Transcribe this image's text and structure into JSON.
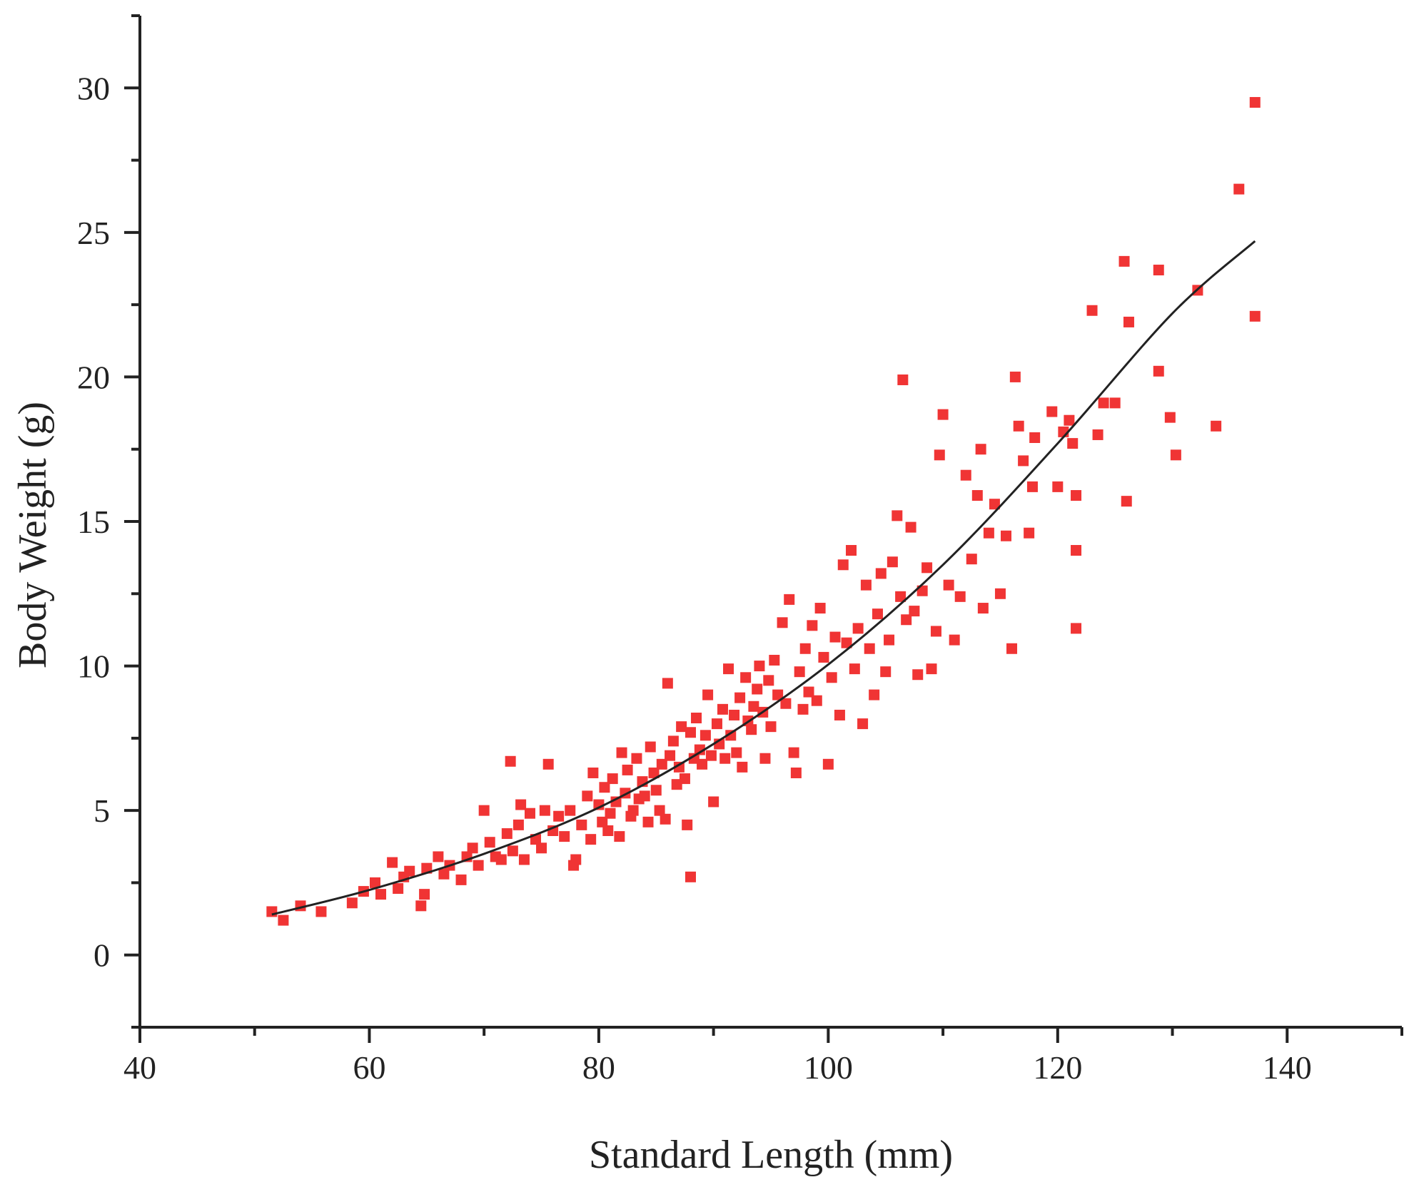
{
  "chart_data": {
    "type": "scatter",
    "title": "",
    "xlabel": "Standard Length (mm)",
    "ylabel": "Body Weight (g)",
    "xlim": [
      40,
      150
    ],
    "ylim": [
      -2.5,
      32.5
    ],
    "x_ticks": [
      40,
      60,
      80,
      100,
      120,
      140
    ],
    "y_ticks": [
      0,
      5,
      10,
      15,
      20,
      25,
      30
    ],
    "x_minor_step": 10,
    "y_minor_step": 2.5,
    "grid": false,
    "legend": "none",
    "marker": "square",
    "colors": {
      "points": "#f03434",
      "fit": "#222222",
      "axes": "#222222"
    },
    "fit_curve": {
      "type": "power",
      "x": [
        51.5,
        60,
        70,
        80,
        90,
        100,
        110,
        120,
        130,
        137.2
      ],
      "y": [
        1.4,
        2.25,
        3.5,
        5.1,
        7.3,
        10.05,
        13.5,
        17.7,
        22.2,
        24.7
      ]
    },
    "series": [
      {
        "points": [
          [
            51.5,
            1.5
          ],
          [
            52.5,
            1.2
          ],
          [
            54,
            1.7
          ],
          [
            55.8,
            1.5
          ],
          [
            58.5,
            1.8
          ],
          [
            59.5,
            2.2
          ],
          [
            60.5,
            2.5
          ],
          [
            61,
            2.1
          ],
          [
            62,
            3.2
          ],
          [
            62.5,
            2.3
          ],
          [
            63,
            2.7
          ],
          [
            63.5,
            2.9
          ],
          [
            64.5,
            1.7
          ],
          [
            64.8,
            2.1
          ],
          [
            65,
            3.0
          ],
          [
            66,
            3.4
          ],
          [
            66.5,
            2.8
          ],
          [
            67,
            3.1
          ],
          [
            68,
            2.6
          ],
          [
            68.5,
            3.4
          ],
          [
            69,
            3.7
          ],
          [
            69.5,
            3.1
          ],
          [
            70,
            5.0
          ],
          [
            70.5,
            3.9
          ],
          [
            71,
            3.4
          ],
          [
            71.5,
            3.3
          ],
          [
            72,
            4.2
          ],
          [
            72.3,
            6.7
          ],
          [
            72.5,
            3.6
          ],
          [
            73,
            4.5
          ],
          [
            73.2,
            5.2
          ],
          [
            73.5,
            3.3
          ],
          [
            74,
            4.9
          ],
          [
            74.5,
            4.0
          ],
          [
            75,
            3.7
          ],
          [
            75.3,
            5.0
          ],
          [
            75.6,
            6.6
          ],
          [
            76,
            4.3
          ],
          [
            76.5,
            4.8
          ],
          [
            77,
            4.1
          ],
          [
            77.5,
            5.0
          ],
          [
            77.8,
            3.1
          ],
          [
            78,
            3.3
          ],
          [
            78.5,
            4.5
          ],
          [
            79,
            5.5
          ],
          [
            79.3,
            4.0
          ],
          [
            79.5,
            6.3
          ],
          [
            80,
            5.2
          ],
          [
            80.3,
            4.6
          ],
          [
            80.5,
            5.8
          ],
          [
            80.8,
            4.3
          ],
          [
            81,
            4.9
          ],
          [
            81.2,
            6.1
          ],
          [
            81.5,
            5.3
          ],
          [
            81.8,
            4.1
          ],
          [
            82,
            7.0
          ],
          [
            82.3,
            5.6
          ],
          [
            82.5,
            6.4
          ],
          [
            82.8,
            4.8
          ],
          [
            83,
            5.0
          ],
          [
            83.3,
            6.8
          ],
          [
            83.5,
            5.4
          ],
          [
            83.8,
            6.0
          ],
          [
            84,
            5.5
          ],
          [
            84.3,
            4.6
          ],
          [
            84.5,
            7.2
          ],
          [
            84.8,
            6.3
          ],
          [
            85,
            5.7
          ],
          [
            85.3,
            5.0
          ],
          [
            85.5,
            6.6
          ],
          [
            85.8,
            4.7
          ],
          [
            86,
            9.4
          ],
          [
            86.2,
            6.9
          ],
          [
            86.5,
            7.4
          ],
          [
            86.8,
            5.9
          ],
          [
            87,
            6.5
          ],
          [
            87.2,
            7.9
          ],
          [
            87.5,
            6.1
          ],
          [
            87.7,
            4.5
          ],
          [
            88,
            2.7
          ],
          [
            88,
            7.7
          ],
          [
            88.3,
            6.8
          ],
          [
            88.5,
            8.2
          ],
          [
            88.8,
            7.1
          ],
          [
            89,
            6.6
          ],
          [
            89.3,
            7.6
          ],
          [
            89.5,
            9.0
          ],
          [
            89.8,
            6.9
          ],
          [
            90,
            5.3
          ],
          [
            90.3,
            8.0
          ],
          [
            90.5,
            7.3
          ],
          [
            90.8,
            8.5
          ],
          [
            91,
            6.8
          ],
          [
            91.3,
            9.9
          ],
          [
            91.5,
            7.6
          ],
          [
            91.8,
            8.3
          ],
          [
            92,
            7.0
          ],
          [
            92.3,
            8.9
          ],
          [
            92.5,
            6.5
          ],
          [
            92.8,
            9.6
          ],
          [
            93,
            8.1
          ],
          [
            93.3,
            7.8
          ],
          [
            93.5,
            8.6
          ],
          [
            93.8,
            9.2
          ],
          [
            94,
            10.0
          ],
          [
            94.3,
            8.4
          ],
          [
            94.5,
            6.8
          ],
          [
            94.8,
            9.5
          ],
          [
            95,
            7.9
          ],
          [
            95.3,
            10.2
          ],
          [
            95.6,
            9.0
          ],
          [
            96,
            11.5
          ],
          [
            96.3,
            8.7
          ],
          [
            96.6,
            12.3
          ],
          [
            97,
            7.0
          ],
          [
            97.2,
            6.3
          ],
          [
            97.5,
            9.8
          ],
          [
            97.8,
            8.5
          ],
          [
            98,
            10.6
          ],
          [
            98.3,
            9.1
          ],
          [
            98.6,
            11.4
          ],
          [
            99,
            8.8
          ],
          [
            99.3,
            12.0
          ],
          [
            99.6,
            10.3
          ],
          [
            100,
            6.6
          ],
          [
            100.3,
            9.6
          ],
          [
            100.6,
            11.0
          ],
          [
            101,
            8.3
          ],
          [
            101.3,
            13.5
          ],
          [
            101.6,
            10.8
          ],
          [
            102,
            14.0
          ],
          [
            102.3,
            9.9
          ],
          [
            102.6,
            11.3
          ],
          [
            103,
            8.0
          ],
          [
            103.3,
            12.8
          ],
          [
            103.6,
            10.6
          ],
          [
            104,
            9.0
          ],
          [
            104.3,
            11.8
          ],
          [
            104.6,
            13.2
          ],
          [
            105,
            9.8
          ],
          [
            105.3,
            10.9
          ],
          [
            105.6,
            13.6
          ],
          [
            106,
            15.2
          ],
          [
            106.3,
            12.4
          ],
          [
            106.5,
            19.9
          ],
          [
            106.8,
            11.6
          ],
          [
            107.2,
            14.8
          ],
          [
            107.5,
            11.9
          ],
          [
            107.8,
            9.7
          ],
          [
            108.2,
            12.6
          ],
          [
            108.6,
            13.4
          ],
          [
            109,
            9.9
          ],
          [
            109.4,
            11.2
          ],
          [
            109.7,
            17.3
          ],
          [
            110,
            18.7
          ],
          [
            110.5,
            12.8
          ],
          [
            111,
            10.9
          ],
          [
            111.5,
            12.4
          ],
          [
            112,
            16.6
          ],
          [
            112.5,
            13.7
          ],
          [
            113,
            15.9
          ],
          [
            113.3,
            17.5
          ],
          [
            113.5,
            12.0
          ],
          [
            114,
            14.6
          ],
          [
            114.5,
            15.6
          ],
          [
            115,
            12.5
          ],
          [
            115.5,
            14.5
          ],
          [
            116,
            10.6
          ],
          [
            116.3,
            20.0
          ],
          [
            116.6,
            18.3
          ],
          [
            117,
            17.1
          ],
          [
            117.5,
            14.6
          ],
          [
            117.8,
            16.2
          ],
          [
            118,
            17.9
          ],
          [
            119.5,
            18.8
          ],
          [
            120,
            16.2
          ],
          [
            120.5,
            18.1
          ],
          [
            121,
            18.5
          ],
          [
            121.3,
            17.7
          ],
          [
            121.6,
            15.9
          ],
          [
            121.6,
            14.0
          ],
          [
            121.6,
            11.3
          ],
          [
            123,
            22.3
          ],
          [
            123.5,
            18.0
          ],
          [
            124,
            19.1
          ],
          [
            125,
            19.1
          ],
          [
            125.8,
            24.0
          ],
          [
            126,
            15.7
          ],
          [
            126.2,
            21.9
          ],
          [
            128.8,
            23.7
          ],
          [
            128.8,
            20.2
          ],
          [
            129.8,
            18.6
          ],
          [
            130.3,
            17.3
          ],
          [
            132.2,
            23.0
          ],
          [
            133.8,
            18.3
          ],
          [
            135.8,
            26.5
          ],
          [
            137.2,
            22.1
          ],
          [
            137.2,
            29.5
          ]
        ]
      }
    ]
  }
}
